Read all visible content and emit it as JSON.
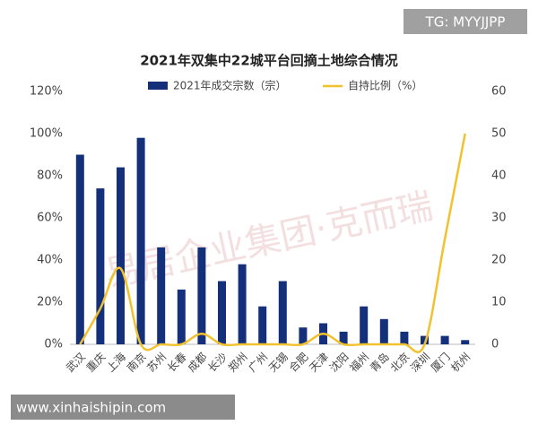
{
  "chart_data": {
    "type": "bar_line",
    "title": "2021年双集中22城平台回摘土地综合情况",
    "watermark_top": "TG: MYYJJPP",
    "watermark_middle": "易居企业集团·克而瑞",
    "watermark_bottom": "www.xinhaishipin.com",
    "categories": [
      "武汉",
      "重庆",
      "上海",
      "南京",
      "苏州",
      "长春",
      "成都",
      "长沙",
      "郑州",
      "广州",
      "无锡",
      "合肥",
      "天津",
      "沈阳",
      "福州",
      "青岛",
      "北京",
      "深圳",
      "厦门",
      "杭州"
    ],
    "series": [
      {
        "name": "2021年成交宗数（宗）",
        "type": "bar",
        "axis": "y2",
        "color": "#14307a",
        "values": [
          45,
          37,
          42,
          49,
          23,
          13,
          23,
          15,
          19,
          9,
          15,
          4,
          5,
          3,
          9,
          6,
          3,
          2,
          2,
          1
        ]
      },
      {
        "name": "自持比例（%）",
        "type": "line",
        "axis": "y",
        "color": "#f2c12e",
        "values": [
          0,
          17,
          36,
          0,
          0,
          0,
          5,
          0,
          0,
          0,
          0,
          0,
          5,
          0,
          0,
          0,
          0,
          0,
          50,
          100
        ]
      }
    ],
    "ylim": [
      0,
      120
    ],
    "yticks": [
      {
        "value": 0,
        "label": "0%"
      },
      {
        "value": 20,
        "label": "20%"
      },
      {
        "value": 40,
        "label": "40%"
      },
      {
        "value": 60,
        "label": "60%"
      },
      {
        "value": 80,
        "label": "80%"
      },
      {
        "value": 100,
        "label": "100%"
      },
      {
        "value": 120,
        "label": "120%"
      }
    ],
    "y2lim": [
      0,
      60
    ],
    "y2ticks": [
      0,
      10,
      20,
      30,
      40,
      50,
      60
    ]
  }
}
